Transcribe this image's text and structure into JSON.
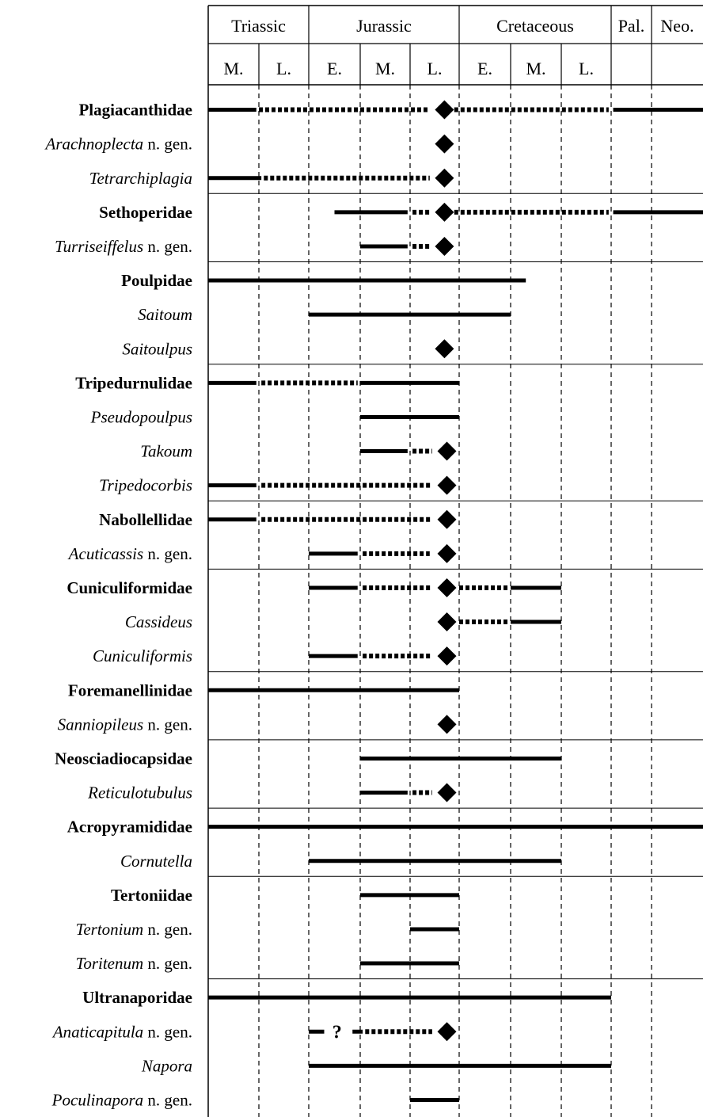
{
  "periods": [
    {
      "label": "Triassic",
      "from": 0,
      "to": 2
    },
    {
      "label": "Jurassic",
      "from": 2,
      "to": 5
    },
    {
      "label": "Cretaceous",
      "from": 5,
      "to": 8
    },
    {
      "label": "Pal.",
      "from": 8,
      "to": 9
    },
    {
      "label": "Neo.",
      "from": 9,
      "to": 10
    }
  ],
  "stages": [
    "M.",
    "L.",
    "E.",
    "M.",
    "L.",
    "E.",
    "M.",
    "L.",
    "",
    ""
  ],
  "suffix_ngen": "n. gen.",
  "question_mark": "?",
  "rows": [
    {
      "name": "Plagiacanthidae",
      "style": "family",
      "group_start": true,
      "segments": [
        {
          "t": "solid",
          "s": 0,
          "e": 0.95
        },
        {
          "t": "dotted",
          "s": 1.0,
          "e": 4.4
        },
        {
          "t": "dotted",
          "s": 4.9,
          "e": 7.95
        },
        {
          "t": "solid",
          "s": 8.05,
          "e": 10
        }
      ],
      "marker": 4.7
    },
    {
      "name": "Arachnoplecta",
      "style": "genus",
      "ngen": true,
      "segments": [],
      "marker": 4.7
    },
    {
      "name": "Tetrarchiplagia",
      "style": "genus",
      "segments": [
        {
          "t": "solid",
          "s": 0,
          "e": 1.05
        },
        {
          "t": "dotted",
          "s": 1.1,
          "e": 4.4
        }
      ],
      "marker": 4.7
    },
    {
      "name": "Sethoperidae",
      "style": "family",
      "group_start": true,
      "segments": [
        {
          "t": "solid",
          "s": 2.5,
          "e": 3.95
        },
        {
          "t": "dotted",
          "s": 4.05,
          "e": 4.4
        },
        {
          "t": "dotted",
          "s": 4.9,
          "e": 7.95
        },
        {
          "t": "solid",
          "s": 8.05,
          "e": 10
        }
      ],
      "marker": 4.7
    },
    {
      "name": "Turriseiffelus",
      "style": "genus",
      "ngen": true,
      "segments": [
        {
          "t": "solid",
          "s": 3.0,
          "e": 3.95
        },
        {
          "t": "dotted",
          "s": 4.05,
          "e": 4.4
        }
      ],
      "marker": 4.7
    },
    {
      "name": "Poulpidae",
      "style": "family",
      "group_start": true,
      "segments": [
        {
          "t": "solid",
          "s": 0,
          "e": 6.3
        }
      ]
    },
    {
      "name": "Saitoum",
      "style": "genus",
      "segments": [
        {
          "t": "solid",
          "s": 2.0,
          "e": 6.0
        }
      ]
    },
    {
      "name": "Saitoulpus",
      "style": "genus",
      "segments": [],
      "marker": 4.7
    },
    {
      "name": "Tripedurnulidae",
      "style": "family",
      "group_start": true,
      "segments": [
        {
          "t": "solid",
          "s": 0,
          "e": 0.95
        },
        {
          "t": "dotted",
          "s": 1.05,
          "e": 2.95
        },
        {
          "t": "solid",
          "s": 3.0,
          "e": 5.0
        }
      ]
    },
    {
      "name": "Pseudopoulpus",
      "style": "genus",
      "segments": [
        {
          "t": "solid",
          "s": 3.0,
          "e": 5.0
        }
      ]
    },
    {
      "name": "Takoum",
      "style": "genus",
      "segments": [
        {
          "t": "solid",
          "s": 3.0,
          "e": 3.95
        },
        {
          "t": "dotted",
          "s": 4.05,
          "e": 4.45
        }
      ],
      "marker": 4.75
    },
    {
      "name": "Tripedocorbis",
      "style": "genus",
      "segments": [
        {
          "t": "solid",
          "s": 0,
          "e": 0.95
        },
        {
          "t": "dotted",
          "s": 1.05,
          "e": 4.45
        }
      ],
      "marker": 4.75
    },
    {
      "name": "Nabollellidae",
      "style": "family",
      "group_start": true,
      "segments": [
        {
          "t": "solid",
          "s": 0,
          "e": 0.95
        },
        {
          "t": "dotted",
          "s": 1.05,
          "e": 4.45
        }
      ],
      "marker": 4.75
    },
    {
      "name": "Acuticassis",
      "style": "genus",
      "ngen": true,
      "segments": [
        {
          "t": "solid",
          "s": 2.0,
          "e": 2.95
        },
        {
          "t": "dotted",
          "s": 3.05,
          "e": 4.4
        }
      ],
      "marker": 4.75
    },
    {
      "name": "Cuniculiformidae",
      "style": "family",
      "group_start": true,
      "segments": [
        {
          "t": "solid",
          "s": 2.0,
          "e": 2.95
        },
        {
          "t": "dotted",
          "s": 3.05,
          "e": 4.45
        },
        {
          "t": "dotted",
          "s": 5.0,
          "e": 5.95
        },
        {
          "t": "solid",
          "s": 6.0,
          "e": 7.0
        }
      ],
      "marker": 4.75
    },
    {
      "name": "Cassideus",
      "style": "genus",
      "segments": [
        {
          "t": "dotted",
          "s": 5.0,
          "e": 5.95
        },
        {
          "t": "solid",
          "s": 6.0,
          "e": 7.0
        }
      ],
      "marker": 4.75
    },
    {
      "name": "Cuniculiformis",
      "style": "genus",
      "segments": [
        {
          "t": "solid",
          "s": 2.0,
          "e": 2.95
        },
        {
          "t": "dotted",
          "s": 3.05,
          "e": 4.45
        }
      ],
      "marker": 4.75
    },
    {
      "name": "Foremanellinidae",
      "style": "family",
      "group_start": true,
      "segments": [
        {
          "t": "solid",
          "s": 0,
          "e": 5.0
        }
      ]
    },
    {
      "name": "Sanniopileus",
      "style": "genus",
      "ngen": true,
      "segments": [],
      "marker": 4.75
    },
    {
      "name": "Neosciadiocapsidae",
      "style": "family",
      "group_start": true,
      "segments": [
        {
          "t": "solid",
          "s": 3.0,
          "e": 7.0
        }
      ]
    },
    {
      "name": "Reticulotubulus",
      "style": "genus",
      "segments": [
        {
          "t": "solid",
          "s": 3.0,
          "e": 3.95
        },
        {
          "t": "dotted",
          "s": 4.05,
          "e": 4.45
        }
      ],
      "marker": 4.75
    },
    {
      "name": "Acropyramididae",
      "style": "family",
      "group_start": true,
      "segments": [
        {
          "t": "solid",
          "s": 0,
          "e": 10
        }
      ]
    },
    {
      "name": "Cornutella",
      "style": "genus",
      "segments": [
        {
          "t": "solid",
          "s": 2.0,
          "e": 7.0
        }
      ]
    },
    {
      "name": "Tertoniidae",
      "style": "family",
      "group_start": true,
      "segments": [
        {
          "t": "solid",
          "s": 3.0,
          "e": 5.0
        }
      ]
    },
    {
      "name": "Tertonium",
      "style": "genus",
      "ngen": true,
      "segments": [
        {
          "t": "solid",
          "s": 4.0,
          "e": 5.0
        }
      ]
    },
    {
      "name": "Toritenum",
      "style": "genus",
      "ngen": true,
      "segments": [
        {
          "t": "solid",
          "s": 3.0,
          "e": 5.0
        }
      ]
    },
    {
      "name": "Ultranaporidae",
      "style": "family",
      "group_start": true,
      "segments": [
        {
          "t": "solid",
          "s": 0,
          "e": 8.0
        }
      ]
    },
    {
      "name": "Anaticapitula",
      "style": "genus",
      "ngen": true,
      "segments": [
        {
          "t": "solid",
          "s": 2.0,
          "e": 2.3
        },
        {
          "t": "solid",
          "s": 2.85,
          "e": 3.05
        },
        {
          "t": "dotted",
          "s": 3.1,
          "e": 4.45
        }
      ],
      "marker": 4.75,
      "question_at": 2.55
    },
    {
      "name": "Napora",
      "style": "genus",
      "segments": [
        {
          "t": "solid",
          "s": 2.0,
          "e": 8.0
        }
      ]
    },
    {
      "name": "Poculinapora",
      "style": "genus",
      "ngen": true,
      "segments": [
        {
          "t": "solid",
          "s": 4.0,
          "e": 5.0
        }
      ]
    }
  ]
}
